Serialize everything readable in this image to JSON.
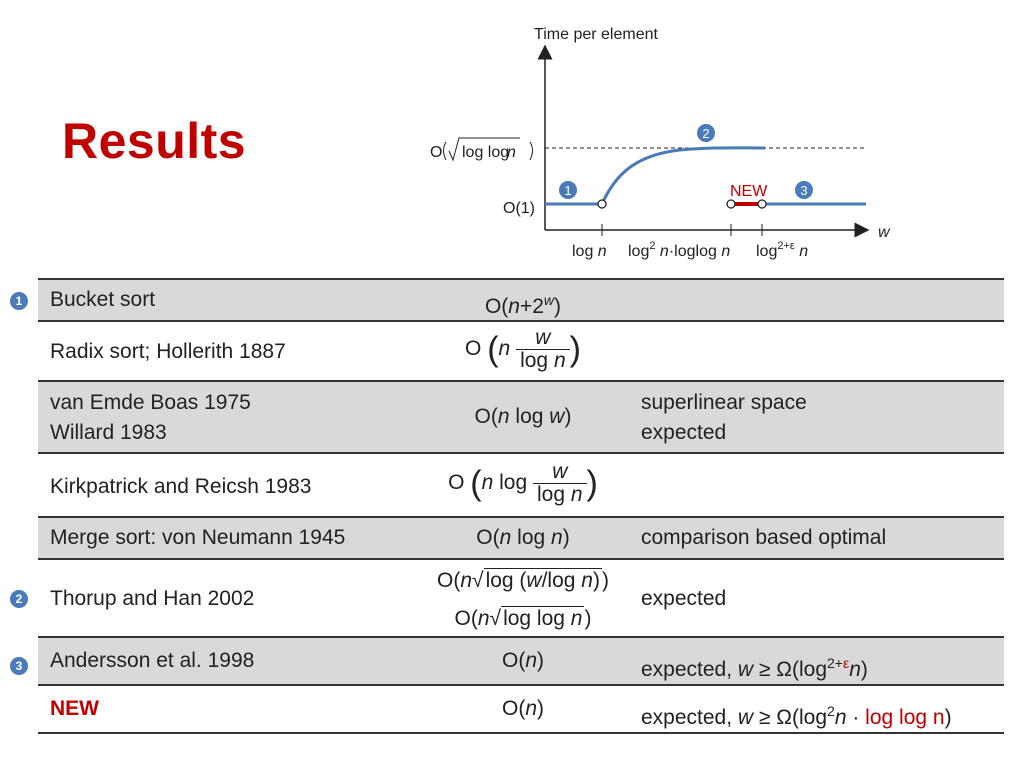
{
  "title": "Results",
  "chart": {
    "y_axis_label": "Time per element",
    "x_axis_label": "w",
    "y_tick_sqrt": "log log",
    "y_tick_sqrt_n": "n",
    "y_tick_o": "O",
    "y_tick_one": "O(1)",
    "x_tick_1_a": "log ",
    "x_tick_1_b": "n",
    "x_tick_2_a": "log",
    "x_tick_2_sup": "2",
    "x_tick_2_b": " n",
    "x_tick_2_c": "·loglog ",
    "x_tick_2_d": "n",
    "x_tick_3_a": "log",
    "x_tick_3_sup": "2+ε",
    "x_tick_3_b": " n",
    "marker_1": "1",
    "marker_2": "2",
    "marker_3": "3",
    "new_label": "NEW",
    "colors": {
      "curve": "#4a7ab8",
      "new_segment": "#c00000"
    }
  },
  "rows": [
    {
      "marker": "1",
      "name": "Bucket sort",
      "complexity": "O(n+2^w)",
      "note": ""
    },
    {
      "marker": "",
      "name": "Radix sort; Hollerith 1887",
      "complexity": "O(n w/log n)",
      "note": ""
    },
    {
      "marker": "",
      "name_line1": "van Emde Boas 1975",
      "name_line2": "Willard 1983",
      "complexity": "O(n log w)",
      "note_line1": "superlinear space",
      "note_line2": "expected"
    },
    {
      "marker": "",
      "name": "Kirkpatrick and Reicsh 1983",
      "complexity": "O(n log w/log n)",
      "note": ""
    },
    {
      "marker": "",
      "name": "Merge sort: von Neumann 1945",
      "complexity": "O(n log n)",
      "note": "comparison based optimal"
    },
    {
      "marker": "2",
      "name": "Thorup and Han 2002",
      "complexity_line1": "O(n√log (w/log n))",
      "complexity_line2": "O(n√log log n)",
      "note": "expected"
    },
    {
      "marker": "3",
      "name": "Andersson et al. 1998",
      "complexity": "O(n)",
      "note_prefix": "expected, ",
      "note_w": "w",
      "note_ge": " ≥ Ω",
      "note_log": "log",
      "note_sup": "2+",
      "note_eps": "ε",
      "note_n": "n"
    },
    {
      "marker": "",
      "name": "NEW",
      "complexity": "O(n)",
      "note_prefix": "expected, ",
      "note_w": "w",
      "note_ge": " ≥ Ω",
      "note_log": "log",
      "note_sup": "2",
      "note_n": "n",
      "note_dot": " · ",
      "note_red": "log log n"
    }
  ]
}
